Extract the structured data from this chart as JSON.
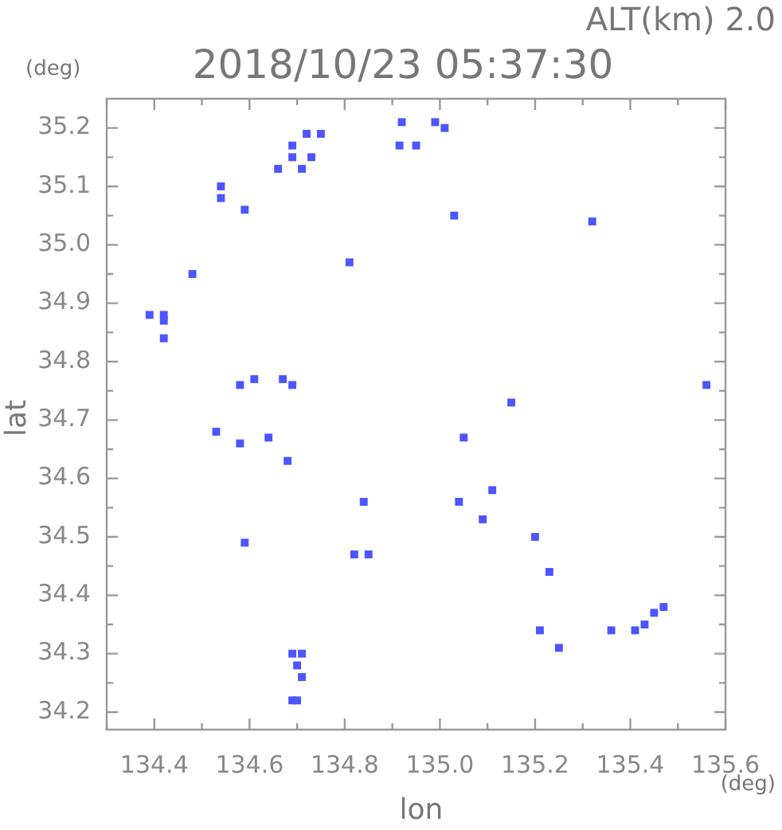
{
  "chart_data": {
    "type": "scatter",
    "title": "2018/10/23 05:37:30",
    "xlabel": "lon",
    "ylabel": "lat",
    "annotations": [
      "ALT(km) 2.0",
      "(deg)",
      "(deg)"
    ],
    "xlim": [
      134.3,
      135.6
    ],
    "ylim": [
      34.17,
      35.25
    ],
    "xticks": [
      {
        "value": 134.3,
        "label": null
      },
      134.4,
      {
        "value": 134.5,
        "label": null
      },
      134.6,
      {
        "value": 134.7,
        "label": null
      },
      134.8,
      {
        "value": 134.9,
        "label": null
      },
      {
        "value": 135,
        "label": "135.0"
      },
      {
        "value": 135.1,
        "label": null
      },
      135.2,
      {
        "value": 135.3,
        "label": null
      },
      135.4,
      {
        "value": 135.5,
        "label": null
      },
      135.6
    ],
    "yticks": [
      34.2,
      {
        "value": 34.25,
        "label": null
      },
      34.3,
      {
        "value": 34.35,
        "label": null
      },
      34.4,
      {
        "value": 34.45,
        "label": null
      },
      34.5,
      {
        "value": 34.55,
        "label": null
      },
      34.6,
      {
        "value": 34.65,
        "label": null
      },
      34.7,
      {
        "value": 34.75,
        "label": null
      },
      34.8,
      {
        "value": 34.85,
        "label": null
      },
      34.9,
      {
        "value": 34.95,
        "label": null
      },
      {
        "value": 35,
        "label": "35.0"
      },
      {
        "value": 35.05,
        "label": null
      },
      35.1,
      {
        "value": 35.15,
        "label": null
      },
      35.2
    ],
    "grid": false,
    "legend": false,
    "marker": "square",
    "series": [
      {
        "color": "#4d55ff",
        "x": [
          134.54,
          134.54,
          134.59,
          134.66,
          134.69,
          134.69,
          134.72,
          134.75,
          134.71,
          134.73,
          134.92,
          134.915,
          134.95,
          134.99,
          135.01,
          135.03,
          135.32,
          134.81,
          134.48,
          134.39,
          134.42,
          134.42,
          134.42,
          134.58,
          134.61,
          134.67,
          134.69,
          135.56,
          134.53,
          134.58,
          134.64,
          134.68,
          135.05,
          135.15,
          134.84,
          135.04,
          135.11,
          135.09,
          135.2,
          134.59,
          134.82,
          134.85,
          135.23,
          135.21,
          135.25,
          135.36,
          135.41,
          135.43,
          135.45,
          135.47,
          134.69,
          134.71,
          134.7,
          134.71,
          134.69,
          134.7
        ],
        "values": [
          35.1,
          35.08,
          35.06,
          35.13,
          35.15,
          35.17,
          35.19,
          35.19,
          35.13,
          35.15,
          35.21,
          35.17,
          35.17,
          35.21,
          35.2,
          35.05,
          35.04,
          34.97,
          34.95,
          34.88,
          34.88,
          34.87,
          34.84,
          34.76,
          34.77,
          34.77,
          34.76,
          34.76,
          34.68,
          34.66,
          34.67,
          34.63,
          34.67,
          34.73,
          34.56,
          34.56,
          34.58,
          34.53,
          34.5,
          34.49,
          34.47,
          34.47,
          34.44,
          34.34,
          34.31,
          34.34,
          34.34,
          34.35,
          34.37,
          34.38,
          34.3,
          34.3,
          34.28,
          34.26,
          34.22,
          34.22
        ]
      }
    ]
  }
}
